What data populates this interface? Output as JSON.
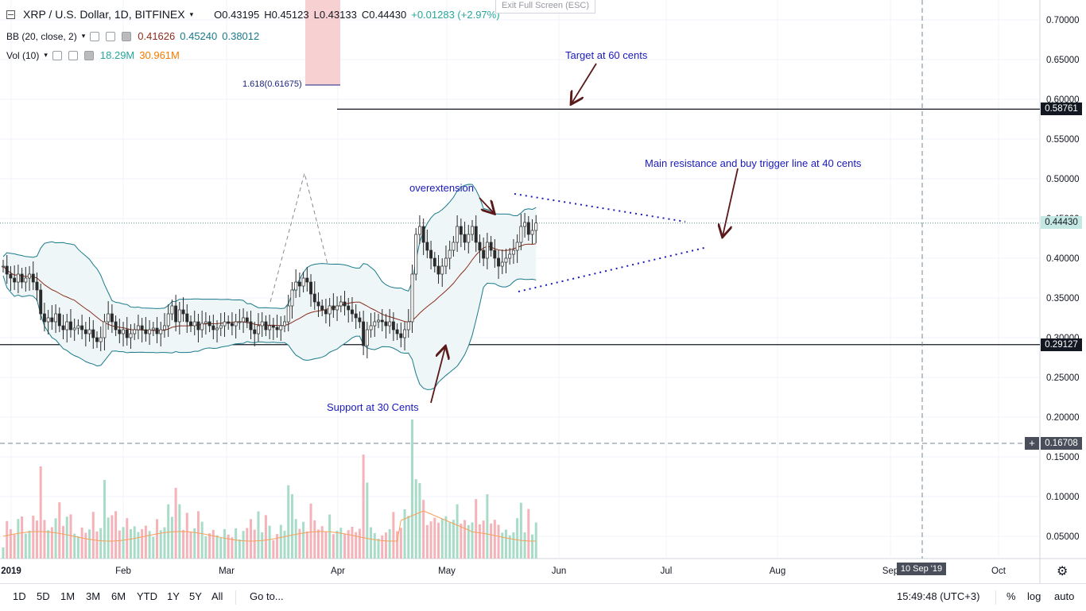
{
  "header": {
    "symbol": "XRP / U.S. Dollar, 1D, BITFINEX",
    "open": "O0.43195",
    "high": "H0.45123",
    "low": "L0.43133",
    "close": "C0.44430",
    "change": "+0.01283 (+2.97%)"
  },
  "bb": {
    "label": "BB (20, close, 2)",
    "v1": "0.41626",
    "v2": "0.45240",
    "v3": "0.38012"
  },
  "vol": {
    "label": "Vol (10)",
    "v1": "18.29M",
    "v2": "30.961M"
  },
  "exit_fullscreen": "Exit Full Screen (ESC)",
  "annotations": {
    "target": "Target at 60 cents",
    "resistance": "Main resistance and buy trigger line at 40 cents",
    "overextension": "overextension",
    "support": "Support at 30 Cents",
    "fib": "1.618(0.61675)"
  },
  "price_labels": {
    "hline_top": "0.58761",
    "last": "0.44430",
    "hline_bottom": "0.29127",
    "crosshair": "0.16708"
  },
  "crosshair_date": "10 Sep '19",
  "bottombar": {
    "ranges": [
      "1D",
      "5D",
      "1M",
      "3M",
      "6M",
      "YTD",
      "1Y",
      "5Y",
      "All"
    ],
    "goto": "Go to...",
    "time": "15:49:48 (UTC+3)",
    "percent": "%",
    "log": "log",
    "auto": "auto"
  },
  "colors": {
    "up": "#53b987",
    "down": "#eb4d5c",
    "annotation": "#1a1ab8",
    "bb_fill": "#eef6f7"
  },
  "chart_data": {
    "type": "candlestick",
    "title": "XRP / U.S. Dollar, 1D, BITFINEX",
    "y_ticks": [
      0.05,
      0.1,
      0.15,
      0.2,
      0.25,
      0.3,
      0.35,
      0.4,
      0.45,
      0.5,
      0.55,
      0.6,
      0.65,
      0.7
    ],
    "y_tick_labels": [
      "0.05000",
      "0.10000",
      "0.15000",
      "0.20000",
      "0.25000",
      "0.30000",
      "0.35000",
      "0.40000",
      "0.45000",
      "0.50000",
      "0.55000",
      "0.60000",
      "0.65000",
      "0.70000"
    ],
    "x_ticks": [
      "2019",
      "Feb",
      "Mar",
      "Apr",
      "May",
      "Jun",
      "Jul",
      "Aug",
      "Sep",
      "Oct"
    ],
    "ylim": [
      0.02,
      0.72
    ],
    "hlines": [
      0.58761,
      0.29127
    ],
    "last_close": 0.4443,
    "support": 0.29127,
    "target": 0.58761,
    "fib_level": 0.61675,
    "closes": [
      0.39,
      0.38,
      0.375,
      0.37,
      0.38,
      0.37,
      0.375,
      0.38,
      0.37,
      0.36,
      0.33,
      0.32,
      0.325,
      0.32,
      0.33,
      0.315,
      0.31,
      0.32,
      0.31,
      0.312,
      0.315,
      0.31,
      0.305,
      0.31,
      0.3,
      0.295,
      0.3,
      0.32,
      0.33,
      0.32,
      0.31,
      0.305,
      0.31,
      0.3,
      0.305,
      0.31,
      0.315,
      0.31,
      0.305,
      0.31,
      0.312,
      0.305,
      0.31,
      0.315,
      0.33,
      0.34,
      0.32,
      0.335,
      0.33,
      0.32,
      0.315,
      0.32,
      0.31,
      0.318,
      0.32,
      0.315,
      0.31,
      0.312,
      0.315,
      0.32,
      0.318,
      0.315,
      0.32,
      0.32,
      0.325,
      0.32,
      0.31,
      0.305,
      0.315,
      0.32,
      0.31,
      0.315,
      0.313,
      0.31,
      0.315,
      0.32,
      0.34,
      0.36,
      0.37,
      0.365,
      0.375,
      0.37,
      0.355,
      0.345,
      0.34,
      0.335,
      0.33,
      0.34,
      0.335,
      0.34,
      0.345,
      0.34,
      0.335,
      0.33,
      0.325,
      0.32,
      0.29,
      0.31,
      0.315,
      0.32,
      0.322,
      0.32,
      0.315,
      0.32,
      0.31,
      0.305,
      0.3,
      0.31,
      0.32,
      0.38,
      0.43,
      0.44,
      0.42,
      0.41,
      0.4,
      0.39,
      0.38,
      0.39,
      0.4,
      0.41,
      0.42,
      0.44,
      0.43,
      0.42,
      0.43,
      0.44,
      0.42,
      0.41,
      0.4,
      0.42,
      0.41,
      0.4,
      0.39,
      0.395,
      0.4,
      0.405,
      0.41,
      0.42,
      0.44,
      0.445,
      0.43,
      0.435,
      0.4443
    ],
    "volume_max_label": "30.961M"
  }
}
